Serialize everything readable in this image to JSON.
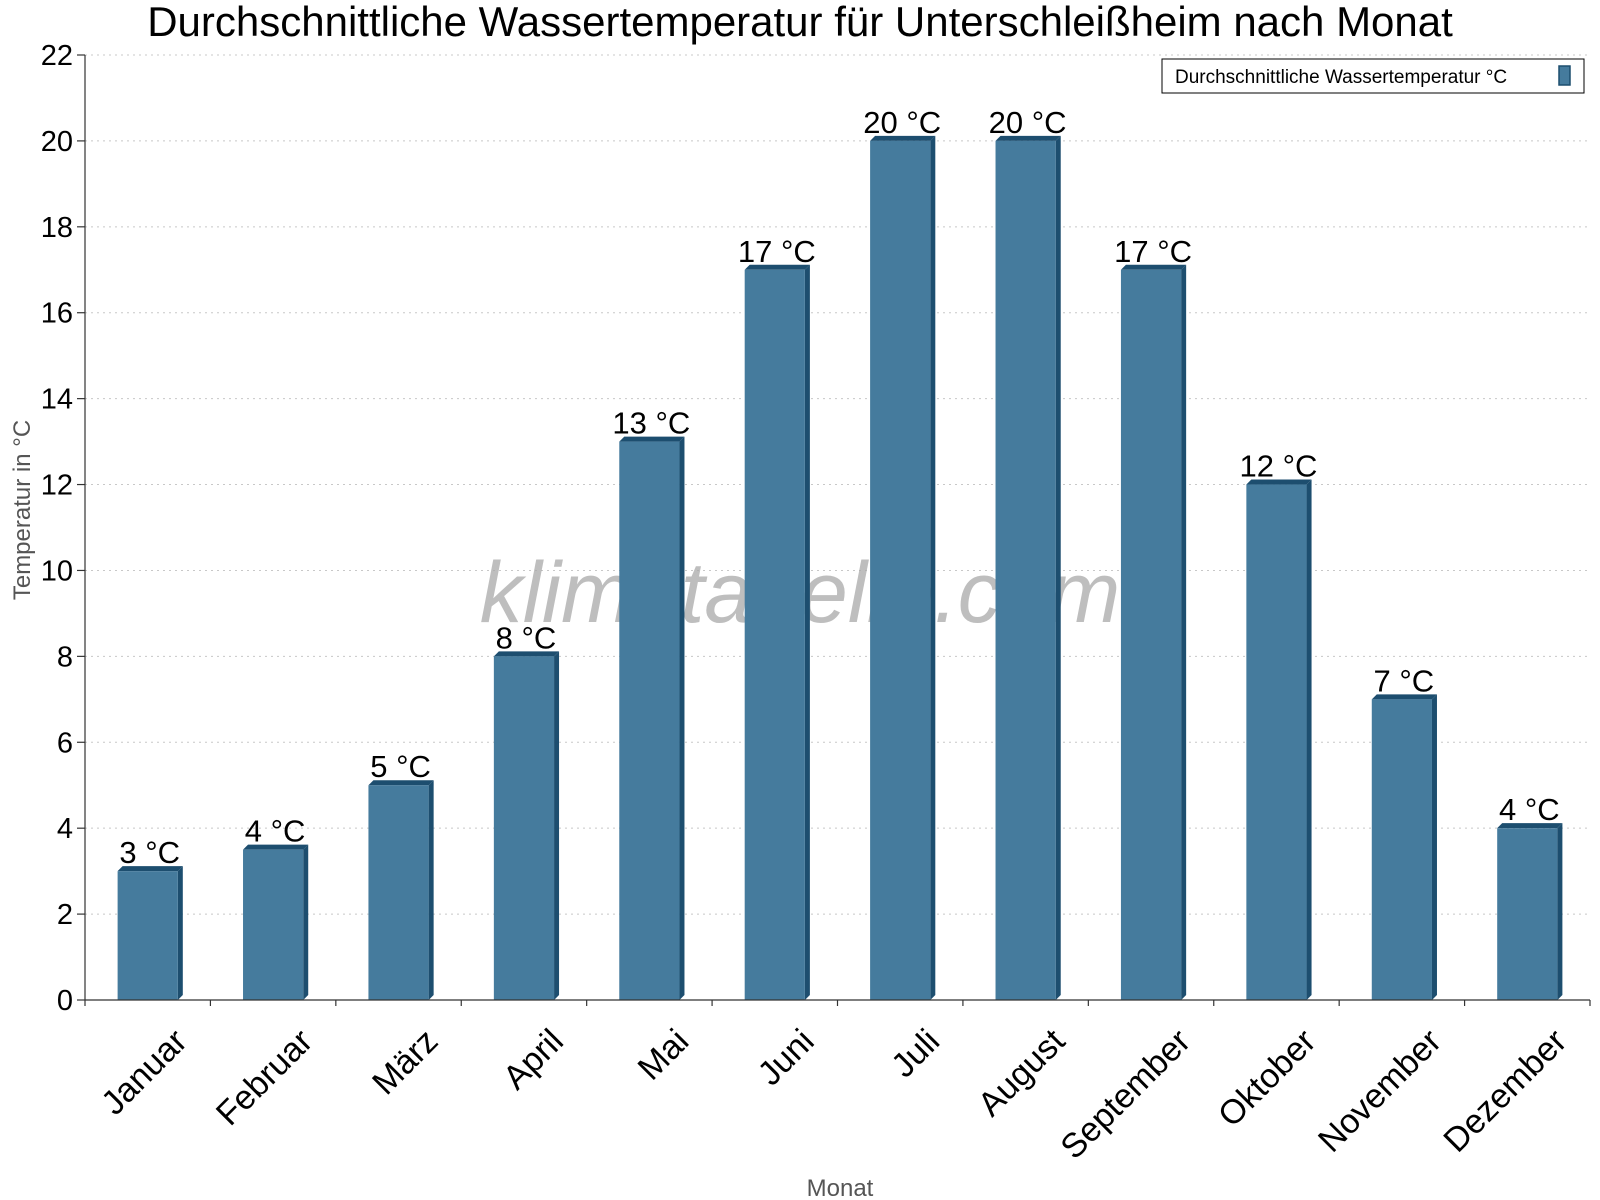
{
  "chart_data": {
    "type": "bar",
    "title": "Durchschnittliche Wassertemperatur für Unterschleißheim nach Monat",
    "xlabel": "Monat",
    "ylabel": "Temperatur in °C",
    "categories": [
      "Januar",
      "Februar",
      "März",
      "April",
      "Mai",
      "Juni",
      "Juli",
      "August",
      "September",
      "Oktober",
      "November",
      "Dezember"
    ],
    "series": [
      {
        "name": "Durchschnittliche Wassertemperatur °C",
        "values": [
          3,
          3.5,
          5,
          8,
          13,
          17,
          20,
          20,
          17,
          12,
          7,
          4
        ],
        "labels": [
          "3 °C",
          "4 °C",
          "5 °C",
          "8 °C",
          "13 °C",
          "17 °C",
          "20 °C",
          "20 °C",
          "17 °C",
          "12 °C",
          "7 °C",
          "4 °C"
        ],
        "color": "#457b9d",
        "edge_color": "#1d4e6f"
      }
    ],
    "ylim": [
      0,
      22
    ],
    "yticks": [
      0,
      2,
      4,
      6,
      8,
      10,
      12,
      14,
      16,
      18,
      20,
      22
    ],
    "grid": true,
    "legend_position": "top-right"
  },
  "watermark": "klimatabelle.com"
}
